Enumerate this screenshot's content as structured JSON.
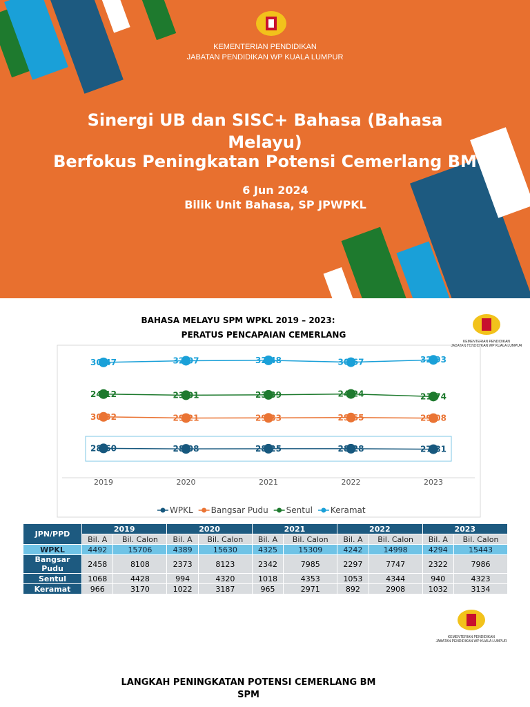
{
  "slide": {
    "ministry": "KEMENTERIAN PENDIDIKAN",
    "department": "JABATAN PENDIDIKAN WP KUALA LUMPUR",
    "title": "Sinergi UB dan SISC+ Bahasa (Bahasa Melayu)",
    "subtitle": "Berfokus Peningkatan Potensi Cemerlang BM",
    "date": "6 Jun 2024",
    "venue": "Bilik Unit Bahasa, SP JPWPKL"
  },
  "logo": {
    "ministry": "KEMENTERIAN PENDIDIKAN",
    "department": "JABATAN PENDIDIKAN WP KUALA LUMPUR"
  },
  "chart_data": {
    "type": "line",
    "title": "BAHASA MELAYU SPM WPKL 2019 – 2023:",
    "subtitle": "PERATUS PENCAPAIAN CEMERLANG",
    "categories": [
      "2019",
      "2020",
      "2021",
      "2022",
      "2023"
    ],
    "legend": "bottom",
    "series": [
      {
        "name": "WPKL",
        "color": "#17587e",
        "values": [
          28.6,
          28.08,
          28.25,
          28.28,
          27.81
        ],
        "value_labels": [
          "28.60",
          "28.08",
          "28.25",
          "28.28",
          "27.81"
        ]
      },
      {
        "name": "Bangsar Pudu",
        "color": "#ea7434",
        "values": [
          30.32,
          29.21,
          29.33,
          29.65,
          29.08
        ],
        "value_labels": [
          "30.32",
          "29.21",
          "29.33",
          "29.65",
          "29.08"
        ]
      },
      {
        "name": "Sentul",
        "color": "#1e7a2e",
        "values": [
          24.12,
          23.01,
          23.39,
          24.24,
          21.74
        ],
        "value_labels": [
          "24.12",
          "23.01",
          "23.39",
          "24.24",
          "21.74"
        ]
      },
      {
        "name": "Keramat",
        "color": "#1aa0d8",
        "values": [
          30.47,
          32.07,
          32.48,
          30.67,
          32.93
        ],
        "value_labels": [
          "30.47",
          "32.07",
          "32.48",
          "30.67",
          "32.93"
        ]
      }
    ]
  },
  "table": {
    "header": "JPN/PPD",
    "years": [
      "2019",
      "2020",
      "2021",
      "2022",
      "2023"
    ],
    "subheaders": [
      "Bil. A",
      "Bil. Calon"
    ],
    "rows": [
      {
        "name": "WPKL",
        "cells": [
          "4492",
          "15706",
          "4389",
          "15630",
          "4325",
          "15309",
          "4242",
          "14998",
          "4294",
          "15443"
        ]
      },
      {
        "name": "Bangsar Pudu",
        "cells": [
          "2458",
          "8108",
          "2373",
          "8123",
          "2342",
          "7985",
          "2297",
          "7747",
          "2322",
          "7986"
        ]
      },
      {
        "name": "Sentul",
        "cells": [
          "1068",
          "4428",
          "994",
          "4320",
          "1018",
          "4353",
          "1053",
          "4344",
          "940",
          "4323"
        ]
      },
      {
        "name": "Keramat",
        "cells": [
          "966",
          "3170",
          "1022",
          "3187",
          "965",
          "2971",
          "892",
          "2908",
          "1032",
          "3134"
        ]
      }
    ]
  },
  "footer": {
    "line1": "LANGKAH PENINGKATAN POTENSI CEMERLANG BM",
    "line2": "SPM"
  }
}
